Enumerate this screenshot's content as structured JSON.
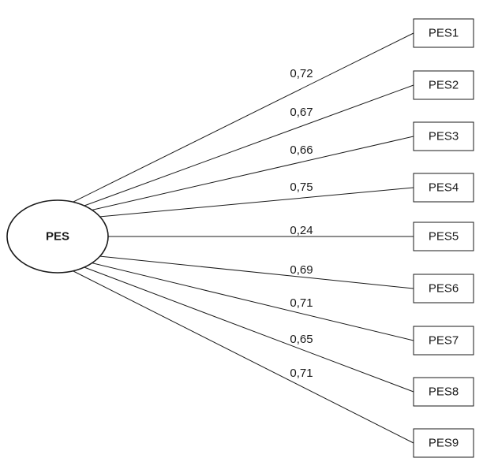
{
  "latent": {
    "label": "PES"
  },
  "indicators": [
    {
      "label": "PES1",
      "loading": "0,72"
    },
    {
      "label": "PES2",
      "loading": "0,67"
    },
    {
      "label": "PES3",
      "loading": "0,66"
    },
    {
      "label": "PES4",
      "loading": "0,75"
    },
    {
      "label": "PES5",
      "loading": "0,24"
    },
    {
      "label": "PES6",
      "loading": "0,69"
    },
    {
      "label": "PES7",
      "loading": "0,71"
    },
    {
      "label": "PES8",
      "loading": "0,65"
    },
    {
      "label": "PES9",
      "loading": "0,71"
    }
  ]
}
